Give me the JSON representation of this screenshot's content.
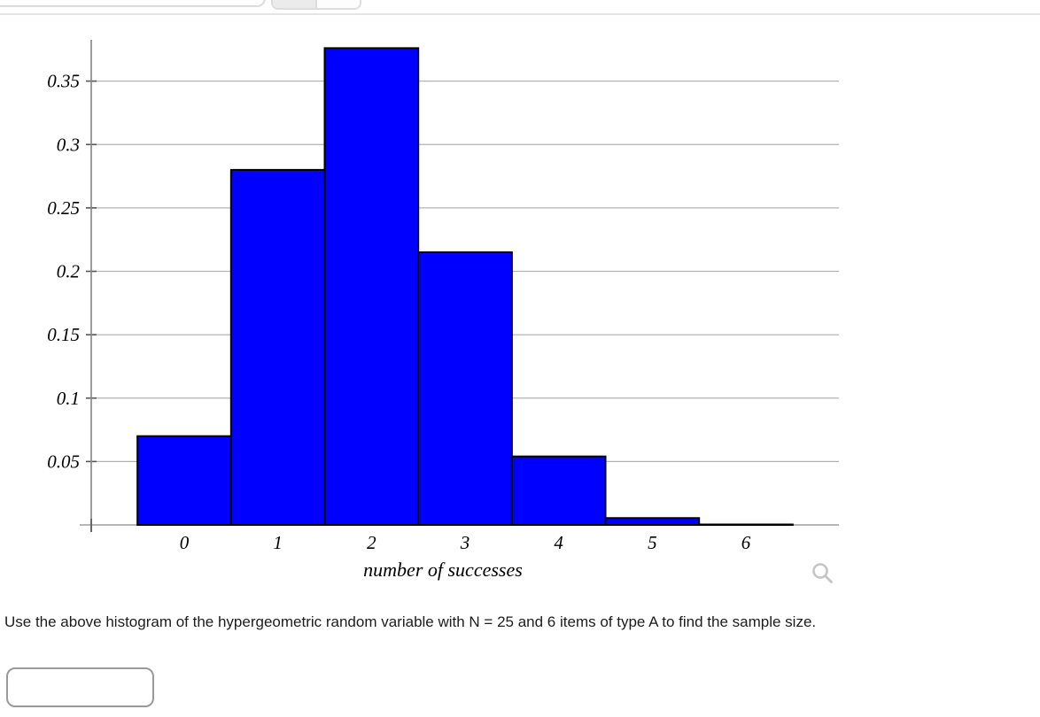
{
  "toolbar": {
    "note_visible_text": ""
  },
  "chart_data": {
    "type": "bar",
    "title": "",
    "xlabel": "number of successes",
    "ylabel": "",
    "categories": [
      "0",
      "1",
      "2",
      "3",
      "4",
      "5",
      "6"
    ],
    "values": [
      0.07,
      0.28,
      0.376,
      0.215,
      0.054,
      0.0054,
      0.0002
    ],
    "y_ticks": [
      0.05,
      0.1,
      0.15,
      0.2,
      0.25,
      0.3,
      0.35
    ],
    "y_tick_labels": [
      "0.05",
      "0.1",
      "0.15",
      "0.2",
      "0.25",
      "0.3",
      "0.35"
    ],
    "ylim": [
      0,
      0.385
    ],
    "grid": true,
    "legend": "none",
    "bar_color": "#0000ff",
    "bar_edge_color": "#000000",
    "gridline_color": "#b3b3b3",
    "axis_color": "#8a8a8a",
    "tick_color": "#555555",
    "zoom_icon": "magnifier",
    "zoom_icon_color": "#c5c5c5"
  },
  "question": {
    "text": "Use the above histogram of the hypergeometric random variable with N = 25 and 6 items of type A to find the sample size."
  },
  "answer_input": {
    "value": "",
    "placeholder": ""
  }
}
